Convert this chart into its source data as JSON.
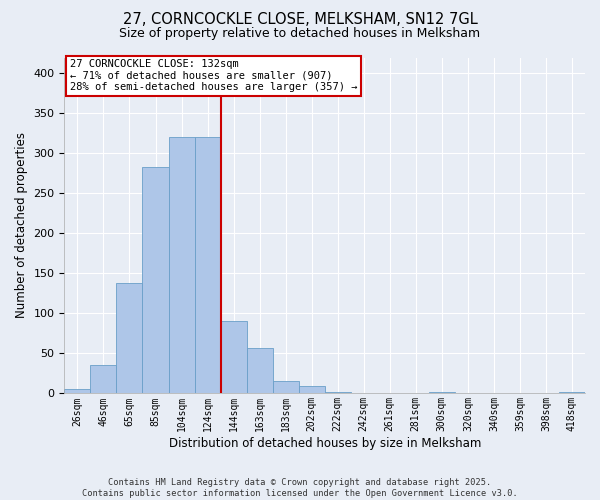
{
  "title_line1": "27, CORNCOCKLE CLOSE, MELKSHAM, SN12 7GL",
  "title_line2": "Size of property relative to detached houses in Melksham",
  "xlabel": "Distribution of detached houses by size in Melksham",
  "ylabel": "Number of detached properties",
  "categories": [
    "26sqm",
    "46sqm",
    "65sqm",
    "85sqm",
    "104sqm",
    "124sqm",
    "144sqm",
    "163sqm",
    "183sqm",
    "202sqm",
    "222sqm",
    "242sqm",
    "261sqm",
    "281sqm",
    "300sqm",
    "320sqm",
    "340sqm",
    "359sqm",
    "398sqm",
    "418sqm"
  ],
  "values": [
    6,
    35,
    138,
    283,
    320,
    320,
    90,
    57,
    16,
    9,
    2,
    1,
    0,
    0,
    2,
    0,
    0,
    1,
    0,
    2
  ],
  "bar_color": "#aec6e8",
  "bar_edge_color": "#6a9fc8",
  "annotation_line1": "27 CORNCOCKLE CLOSE: 132sqm",
  "annotation_line2": "← 71% of detached houses are smaller (907)",
  "annotation_line3": "28% of semi-detached houses are larger (357) →",
  "annotation_box_facecolor": "#ffffff",
  "annotation_box_edgecolor": "#cc0000",
  "vline_color": "#cc0000",
  "background_color": "#e8edf5",
  "grid_color": "#ffffff",
  "ylim": [
    0,
    420
  ],
  "yticks": [
    0,
    50,
    100,
    150,
    200,
    250,
    300,
    350,
    400
  ],
  "footer": "Contains HM Land Registry data © Crown copyright and database right 2025.\nContains public sector information licensed under the Open Government Licence v3.0.",
  "bin_width": 1,
  "n_bins": 20,
  "vline_bin_index": 6
}
